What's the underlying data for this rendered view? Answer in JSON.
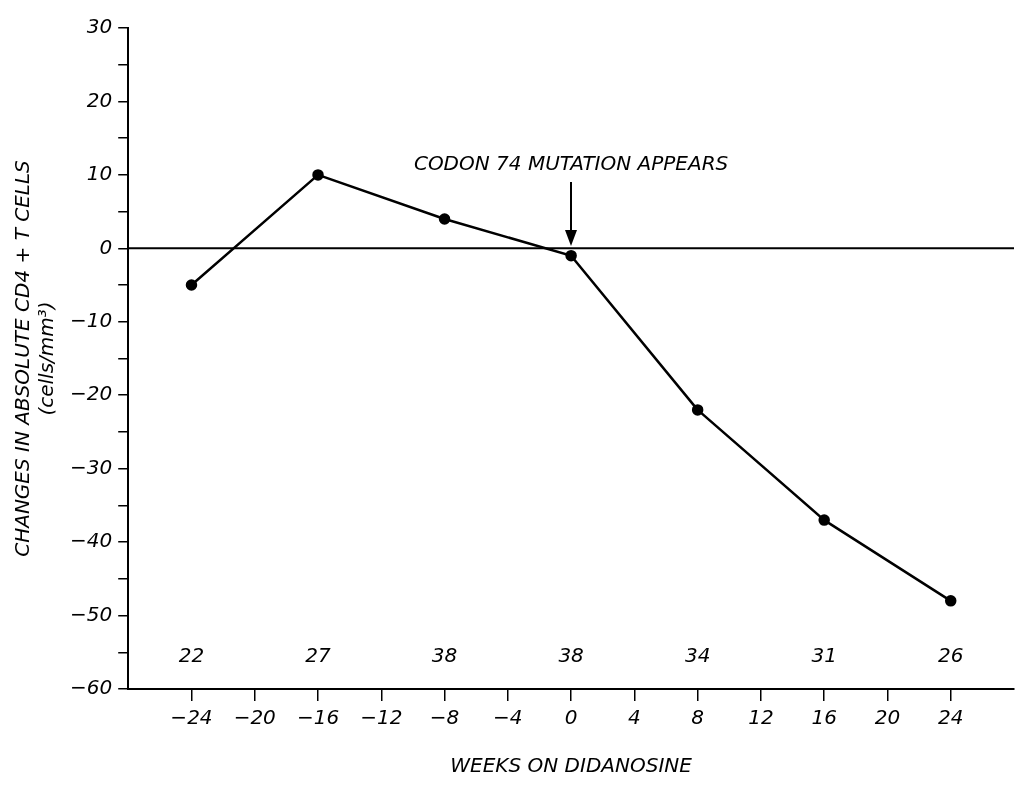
{
  "chart_data": {
    "type": "line",
    "xlabel": "WEEKS ON DIDANOSINE",
    "ylabel": "CHANGES IN ABSOLUTE CD4 + T CELLS\n(cells/mm³)",
    "x": [
      -24,
      -16,
      -8,
      0,
      8,
      16,
      24
    ],
    "series": [
      {
        "color": "#000000",
        "values": [
          -5,
          10,
          4,
          -1,
          -22,
          -37,
          -48
        ]
      }
    ],
    "xlim": [
      -28,
      28
    ],
    "xticks": [
      -24,
      -20,
      -16,
      -12,
      -8,
      -4,
      0,
      4,
      8,
      12,
      16,
      20,
      24
    ],
    "ylim": [
      -60,
      30
    ],
    "yticks": [
      -60,
      {
        "value": -55,
        "label": null
      },
      -50,
      {
        "value": -45,
        "label": null
      },
      -40,
      {
        "value": -35,
        "label": null
      },
      -30,
      {
        "value": -25,
        "label": null
      },
      -20,
      {
        "value": -15,
        "label": null
      },
      -10,
      {
        "value": -5,
        "label": null
      },
      0,
      {
        "value": 5,
        "label": null
      },
      10,
      {
        "value": 15,
        "label": null
      },
      20,
      {
        "value": 25,
        "label": null
      },
      30
    ],
    "ref_lines": [
      {
        "axis": "y",
        "value": 0,
        "color": "#000000"
      }
    ],
    "annotations": [
      "CODON 74 MUTATION APPEARS",
      "22",
      "27",
      "38",
      "38",
      "34",
      "31",
      "26"
    ],
    "marker": "circle",
    "line_style": "solid",
    "grid": false,
    "legend": false
  }
}
